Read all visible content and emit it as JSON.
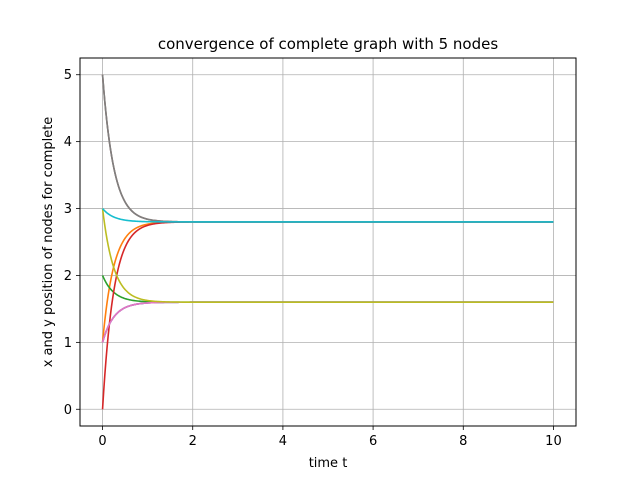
{
  "chart_data": {
    "type": "line",
    "title": "convergence of complete graph with 5 nodes",
    "xlabel": "time t",
    "ylabel": "x and y position of nodes for complete",
    "xlim": [
      -0.5,
      10.5
    ],
    "ylim": [
      -0.25,
      5.25
    ],
    "xticks": [
      0,
      2,
      4,
      6,
      8,
      10
    ],
    "yticks": [
      0,
      1,
      2,
      3,
      4,
      5
    ],
    "grid": true,
    "legend": "none",
    "series": [
      {
        "color": "#1f77b4",
        "start": 1.0,
        "final": 1.6,
        "rate": 4
      },
      {
        "color": "#ff7f0e",
        "start": 1.0,
        "final": 2.8,
        "rate": 4
      },
      {
        "color": "#2ca02c",
        "start": 2.0,
        "final": 1.6,
        "rate": 4
      },
      {
        "color": "#d62728",
        "start": 0.0,
        "final": 2.8,
        "rate": 4
      },
      {
        "color": "#9467bd",
        "start": 1.0,
        "final": 1.6,
        "rate": 4
      },
      {
        "color": "#8c564b",
        "start": 5.0,
        "final": 2.8,
        "rate": 4
      },
      {
        "color": "#e377c2",
        "start": 1.0,
        "final": 1.6,
        "rate": 4
      },
      {
        "color": "#7f7f7f",
        "start": 5.0,
        "final": 2.8,
        "rate": 4
      },
      {
        "color": "#bcbd22",
        "start": 3.0,
        "final": 1.6,
        "rate": 4
      },
      {
        "color": "#17becf",
        "start": 3.0,
        "final": 2.8,
        "rate": 4
      }
    ]
  }
}
